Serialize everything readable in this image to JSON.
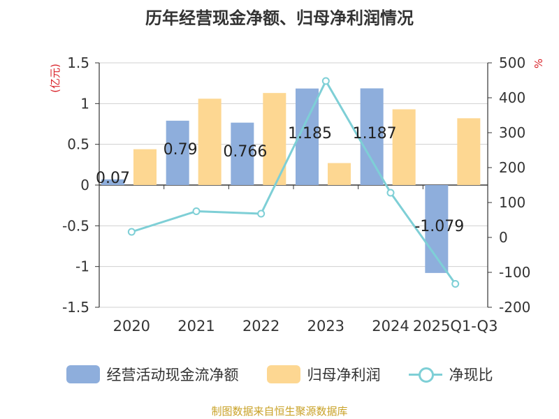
{
  "colors": {
    "bar_cashflow": "#8eaedc",
    "bar_profit": "#fdd792",
    "line_ratio": "#7ecfd6",
    "axis": "#333333",
    "grid": "#d0d0d0",
    "unit_label": "#d9232a",
    "source": "#c9a227"
  },
  "legend": {
    "cashflow": "经营活动现金流净额",
    "profit": "归母净利润",
    "ratio": "净现比"
  },
  "source_text": "制图数据来自恒生聚源数据库",
  "chart_data": {
    "type": "bar",
    "title": "历年经营现金净额、归母净利润情况",
    "categories": [
      "2020",
      "2021",
      "2022",
      "2023",
      "2024",
      "2025Q1-Q3"
    ],
    "series": [
      {
        "name": "经营活动现金流净额",
        "type": "bar",
        "axis": "left",
        "values": [
          0.07,
          0.79,
          0.766,
          1.185,
          1.187,
          -1.079
        ],
        "data_labels": [
          "0.07",
          "0.79",
          "0.766",
          "1.185",
          "1.187",
          "-1.079"
        ]
      },
      {
        "name": "归母净利润",
        "type": "bar",
        "axis": "left",
        "values": [
          0.44,
          1.06,
          1.13,
          0.27,
          0.93,
          0.82
        ]
      },
      {
        "name": "净现比",
        "type": "line",
        "axis": "right",
        "values": [
          16,
          75,
          68,
          448,
          128,
          -133
        ]
      }
    ],
    "left_axis": {
      "unit": "(亿元)",
      "ylim": [
        -1.5,
        1.5
      ],
      "ticks": [
        "1.5",
        "1",
        "0.5",
        "0",
        "-0.5",
        "-1",
        "-1.5"
      ],
      "tick_values": [
        1.5,
        1,
        0.5,
        0,
        -0.5,
        -1,
        -1.5
      ]
    },
    "right_axis": {
      "unit": "%",
      "ylim": [
        -200,
        500
      ],
      "ticks": [
        "500",
        "400",
        "300",
        "200",
        "100",
        "0",
        "-100",
        "-200"
      ],
      "tick_values": [
        500,
        400,
        300,
        200,
        100,
        0,
        -100,
        -200
      ]
    },
    "grid": true,
    "legend_position": "bottom"
  }
}
